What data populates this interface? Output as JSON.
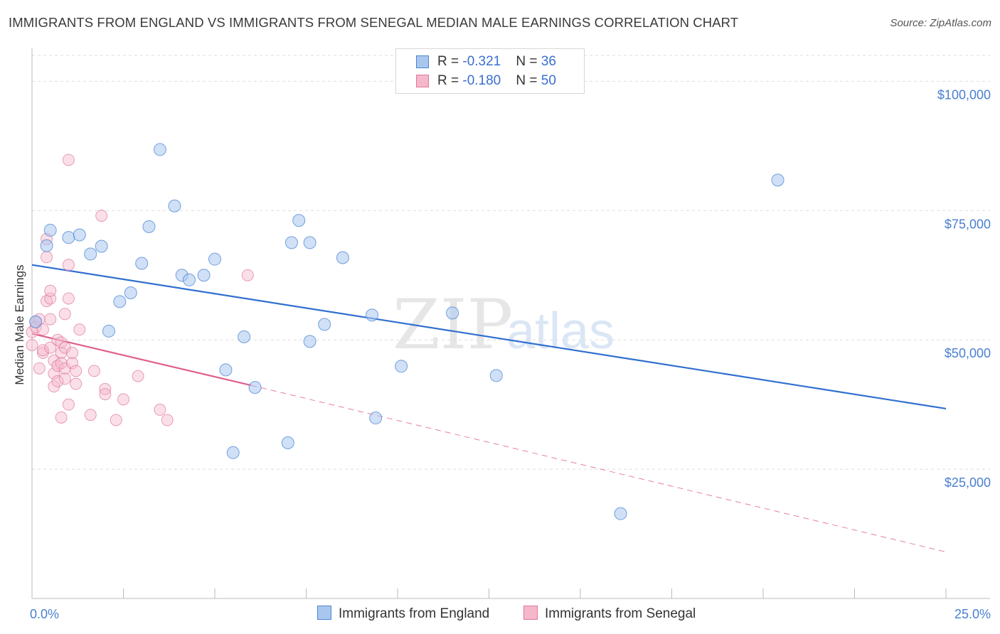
{
  "title": "IMMIGRANTS FROM ENGLAND VS IMMIGRANTS FROM SENEGAL MEDIAN MALE EARNINGS CORRELATION CHART",
  "source": "Source: ZipAtlas.com",
  "watermark": {
    "zip": "ZIP",
    "atlas": "atlas"
  },
  "legend": {
    "england": {
      "r_label": "R = ",
      "r_value": "-0.321",
      "n_label": "N = ",
      "n_value": "36"
    },
    "senegal": {
      "r_label": "R = ",
      "r_value": "-0.180",
      "n_label": "N = ",
      "n_value": "50"
    }
  },
  "colors": {
    "england_fill": "#a9c7ee",
    "england_stroke": "#4a86d4",
    "england_line": "#2f6fcf",
    "senegal_fill": "#f5b8cb",
    "senegal_stroke": "#e0779c",
    "senegal_line": "#e05f8c",
    "tick_text": "#4a7fd0",
    "grid": "#dddddd"
  },
  "chart_data": {
    "type": "scatter",
    "title": "IMMIGRANTS FROM ENGLAND VS IMMIGRANTS FROM SENEGAL MEDIAN MALE EARNINGS CORRELATION CHART",
    "xlabel": "",
    "ylabel": "Median Male Earnings",
    "xlim": [
      0,
      25
    ],
    "ylim": [
      0,
      105000
    ],
    "x_tick_labels": [
      "0.0%",
      "25.0%"
    ],
    "y_ticks": [
      25000,
      50000,
      75000,
      100000
    ],
    "y_tick_labels": [
      "$25,000",
      "$50,000",
      "$75,000",
      "$100,000"
    ],
    "grid": true,
    "legend_position": "top-center",
    "series": [
      {
        "name": "Immigrants from England",
        "r": -0.321,
        "n": 36,
        "trend": {
          "x": [
            0,
            25
          ],
          "y": [
            64500,
            36700
          ],
          "style": "solid"
        },
        "points": [
          [
            0.1,
            53500
          ],
          [
            0.4,
            68200
          ],
          [
            0.5,
            71200
          ],
          [
            1.0,
            69800
          ],
          [
            1.3,
            70300
          ],
          [
            1.6,
            66600
          ],
          [
            1.9,
            68100
          ],
          [
            2.1,
            51700
          ],
          [
            2.4,
            57400
          ],
          [
            2.7,
            59100
          ],
          [
            3.0,
            64800
          ],
          [
            3.2,
            71900
          ],
          [
            3.5,
            86800
          ],
          [
            3.9,
            75900
          ],
          [
            4.1,
            62500
          ],
          [
            4.3,
            61600
          ],
          [
            4.7,
            62500
          ],
          [
            5.0,
            65600
          ],
          [
            5.3,
            44200
          ],
          [
            5.5,
            28200
          ],
          [
            5.8,
            50600
          ],
          [
            6.1,
            40800
          ],
          [
            7.0,
            30100
          ],
          [
            7.1,
            68800
          ],
          [
            7.3,
            73100
          ],
          [
            7.6,
            68800
          ],
          [
            7.6,
            49700
          ],
          [
            8.0,
            53000
          ],
          [
            8.5,
            65900
          ],
          [
            9.3,
            54800
          ],
          [
            9.4,
            34900
          ],
          [
            10.1,
            44900
          ],
          [
            11.5,
            55200
          ],
          [
            12.7,
            43100
          ],
          [
            16.1,
            16400
          ],
          [
            20.4,
            80900
          ]
        ]
      },
      {
        "name": "Immigrants from Senegal",
        "r": -0.18,
        "n": 50,
        "trend": {
          "x": [
            0,
            6
          ],
          "y": [
            51200,
            41200
          ],
          "style": "solid",
          "extension": {
            "x": [
              6,
              25
            ],
            "y": [
              41200,
              9000
            ],
            "style": "dashed"
          }
        },
        "points": [
          [
            0.0,
            49000
          ],
          [
            0.0,
            51500
          ],
          [
            0.1,
            53500
          ],
          [
            0.1,
            52500
          ],
          [
            0.2,
            54000
          ],
          [
            0.2,
            44500
          ],
          [
            0.3,
            47500
          ],
          [
            0.3,
            52000
          ],
          [
            0.3,
            48000
          ],
          [
            0.4,
            57500
          ],
          [
            0.4,
            66000
          ],
          [
            0.4,
            69500
          ],
          [
            0.5,
            48500
          ],
          [
            0.5,
            54000
          ],
          [
            0.5,
            58000
          ],
          [
            0.5,
            59500
          ],
          [
            0.6,
            46000
          ],
          [
            0.6,
            41000
          ],
          [
            0.6,
            43500
          ],
          [
            0.7,
            45000
          ],
          [
            0.7,
            50000
          ],
          [
            0.7,
            42000
          ],
          [
            0.8,
            49500
          ],
          [
            0.8,
            47500
          ],
          [
            0.8,
            45500
          ],
          [
            0.8,
            35000
          ],
          [
            0.9,
            42500
          ],
          [
            0.9,
            48500
          ],
          [
            0.9,
            44500
          ],
          [
            0.9,
            55000
          ],
          [
            1.0,
            37500
          ],
          [
            1.0,
            58000
          ],
          [
            1.0,
            64500
          ],
          [
            1.0,
            84800
          ],
          [
            1.1,
            45500
          ],
          [
            1.1,
            47500
          ],
          [
            1.2,
            41500
          ],
          [
            1.2,
            44000
          ],
          [
            1.3,
            52000
          ],
          [
            1.6,
            35500
          ],
          [
            1.7,
            44000
          ],
          [
            1.9,
            74000
          ],
          [
            2.0,
            40500
          ],
          [
            2.0,
            39500
          ],
          [
            2.3,
            34500
          ],
          [
            2.5,
            38500
          ],
          [
            2.9,
            43000
          ],
          [
            3.5,
            36500
          ],
          [
            3.7,
            34500
          ],
          [
            5.9,
            62500
          ]
        ]
      }
    ]
  },
  "bottom_legend": {
    "england_label": "Immigrants from England",
    "senegal_label": "Immigrants from Senegal"
  }
}
